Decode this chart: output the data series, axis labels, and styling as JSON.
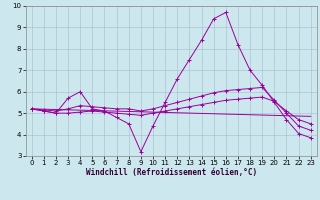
{
  "xlabel": "Windchill (Refroidissement éolien,°C)",
  "bg_color": "#cce8ee",
  "line_color": "#990099",
  "grid_color": "#aabbcc",
  "xlim": [
    -0.5,
    23.5
  ],
  "ylim": [
    3,
    10
  ],
  "yticks": [
    3,
    4,
    5,
    6,
    7,
    8,
    9,
    10
  ],
  "xticks": [
    0,
    1,
    2,
    3,
    4,
    5,
    6,
    7,
    8,
    9,
    10,
    11,
    12,
    13,
    14,
    15,
    16,
    17,
    18,
    19,
    20,
    21,
    22,
    23
  ],
  "series": [
    {
      "x": [
        0,
        1,
        2,
        3,
        4,
        5,
        6,
        7,
        8,
        9,
        10,
        11,
        12,
        13,
        14,
        15,
        16,
        17,
        18,
        19,
        20,
        21,
        22,
        23
      ],
      "y": [
        5.2,
        5.1,
        5.0,
        5.7,
        6.0,
        5.2,
        5.1,
        4.8,
        4.5,
        3.2,
        4.4,
        5.5,
        6.6,
        7.5,
        8.4,
        9.4,
        9.7,
        8.2,
        7.0,
        6.3,
        5.5,
        4.7,
        4.05,
        3.85
      ],
      "markers": true
    },
    {
      "x": [
        0,
        1,
        2,
        3,
        4,
        5,
        6,
        7,
        8,
        9,
        10,
        11,
        12,
        13,
        14,
        15,
        16,
        17,
        18,
        19,
        20,
        21,
        22,
        23
      ],
      "y": [
        5.2,
        5.15,
        5.1,
        5.2,
        5.35,
        5.3,
        5.25,
        5.2,
        5.2,
        5.1,
        5.2,
        5.35,
        5.5,
        5.65,
        5.8,
        5.95,
        6.05,
        6.1,
        6.15,
        6.2,
        5.6,
        5.0,
        4.4,
        4.2
      ],
      "markers": true
    },
    {
      "x": [
        0,
        1,
        2,
        3,
        4,
        5,
        6,
        7,
        8,
        9,
        10,
        11,
        12,
        13,
        14,
        15,
        16,
        17,
        18,
        19,
        20,
        21,
        22,
        23
      ],
      "y": [
        5.2,
        5.1,
        5.0,
        5.0,
        5.05,
        5.1,
        5.05,
        5.0,
        4.95,
        4.9,
        5.0,
        5.1,
        5.2,
        5.3,
        5.4,
        5.5,
        5.6,
        5.65,
        5.7,
        5.75,
        5.55,
        5.1,
        4.7,
        4.5
      ],
      "markers": true
    },
    {
      "x": [
        0,
        23
      ],
      "y": [
        5.2,
        4.85
      ],
      "markers": false
    }
  ]
}
